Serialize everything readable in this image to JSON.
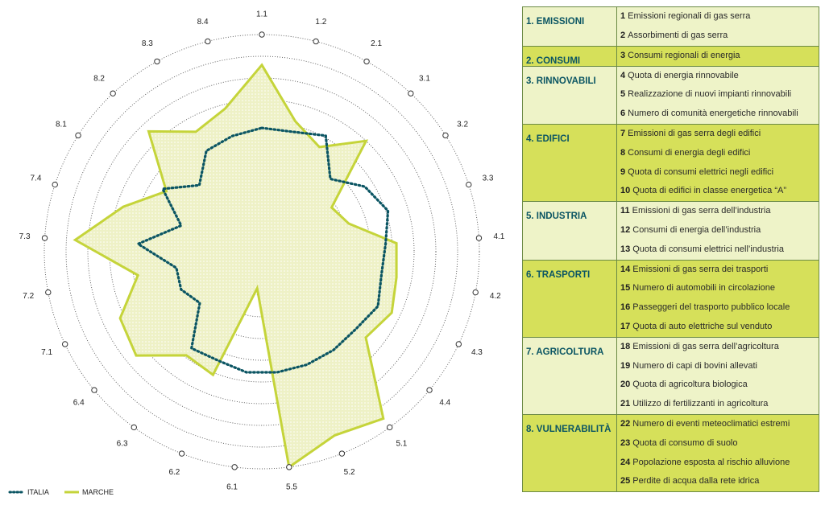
{
  "chart_data": {
    "type": "radar",
    "axes": [
      "1.1",
      "1.2",
      "2.1",
      "3.1",
      "3.2",
      "3.3",
      "4.1",
      "4.2",
      "4.3",
      "4.4",
      "5.1",
      "5.2",
      "5.5",
      "6.1",
      "6.2",
      "6.3",
      "6.4",
      "7.1",
      "7.2",
      "7.3",
      "7.4",
      "8.1",
      "8.2",
      "8.3",
      "8.4"
    ],
    "rmax": 10,
    "rings": 10,
    "series": [
      {
        "name": "ITALIA",
        "color": "#0b5563",
        "style": "dotted",
        "values": [
          5.7,
          5.7,
          6.1,
          4.6,
          5.6,
          6.1,
          5.7,
          5.6,
          5.9,
          5.6,
          5.6,
          5.6,
          5.6,
          5.6,
          5.4,
          5.5,
          3.7,
          4.1,
          4.0,
          5.7,
          3.9,
          5.4,
          4.2,
          5.3,
          5.5
        ]
      },
      {
        "name": "MARCHE",
        "color": "#c5d43a",
        "style": "solid",
        "values": [
          8.6,
          6.2,
          5.5,
          7.0,
          3.8,
          4.2,
          6.2,
          6.3,
          6.6,
          6.2,
          9.5,
          9.1,
          10.0,
          1.7,
          6.1,
          5.9,
          7.5,
          7.2,
          5.8,
          8.6,
          6.7,
          5.2,
          7.6,
          6.3,
          6.8
        ]
      }
    ]
  },
  "legend": {
    "italia": "ITALIA",
    "marche": "MARCHE"
  },
  "table": [
    {
      "category": "1. EMISSIONI",
      "shade": "light",
      "items": [
        {
          "n": "1",
          "text": "Emissioni regionali di gas serra"
        },
        {
          "n": "2",
          "text": "Assorbimenti di gas serra"
        }
      ]
    },
    {
      "category": "2. CONSUMI",
      "shade": "dark",
      "items": [
        {
          "n": "3",
          "text": "Consumi regionali di energia"
        }
      ]
    },
    {
      "category": "3. RINNOVABILI",
      "shade": "light",
      "items": [
        {
          "n": "4",
          "text": "Quota di energia rinnovabile"
        },
        {
          "n": "5",
          "text": "Realizzazione di nuovi impianti rinnovabili"
        },
        {
          "n": "6",
          "text": "Numero di comunità energetiche rinnovabili"
        }
      ]
    },
    {
      "category": "4. EDIFICI",
      "shade": "dark",
      "items": [
        {
          "n": "7",
          "text": "Emissioni di gas serra degli edifici"
        },
        {
          "n": "8",
          "text": "Consumi di energia degli edifici"
        },
        {
          "n": "9",
          "text": "Quota di consumi elettrici negli edifici"
        },
        {
          "n": "10",
          "text": "Quota di edifici in classe energetica “A”"
        }
      ]
    },
    {
      "category": "5. INDUSTRIA",
      "shade": "light",
      "items": [
        {
          "n": "11",
          "text": "Emissioni di gas serra dell’industria"
        },
        {
          "n": "12",
          "text": "Consumi di energia dell’industria"
        },
        {
          "n": "13",
          "text": "Quota di consumi elettrici nell’industria"
        }
      ]
    },
    {
      "category": "6. TRASPORTI",
      "shade": "dark",
      "items": [
        {
          "n": "14",
          "text": "Emissioni di gas serra dei trasporti"
        },
        {
          "n": "15",
          "text": "Numero di automobili in circolazione"
        },
        {
          "n": "16",
          "text": "Passeggeri del trasporto pubblico locale"
        },
        {
          "n": "17",
          "text": "Quota di auto elettriche sul venduto"
        }
      ]
    },
    {
      "category": "7. AGRICOLTURA",
      "shade": "light",
      "items": [
        {
          "n": "18",
          "text": "Emissioni di gas serra dell’agricoltura"
        },
        {
          "n": "19",
          "text": "Numero di capi di bovini allevati"
        },
        {
          "n": "20",
          "text": "Quota di agricoltura biologica"
        },
        {
          "n": "21",
          "text": "Utilizzo di fertilizzanti in agricoltura"
        }
      ]
    },
    {
      "category": "8. VULNERABILITÀ",
      "shade": "dark",
      "items": [
        {
          "n": "22",
          "text": "Numero di eventi meteoclimatici estremi"
        },
        {
          "n": "23",
          "text": "Quota di consumo di suolo"
        },
        {
          "n": "24",
          "text": "Popolazione esposta al rischio alluvione"
        },
        {
          "n": "25",
          "text": "Perdite di acqua dalla rete idrica"
        }
      ]
    }
  ]
}
